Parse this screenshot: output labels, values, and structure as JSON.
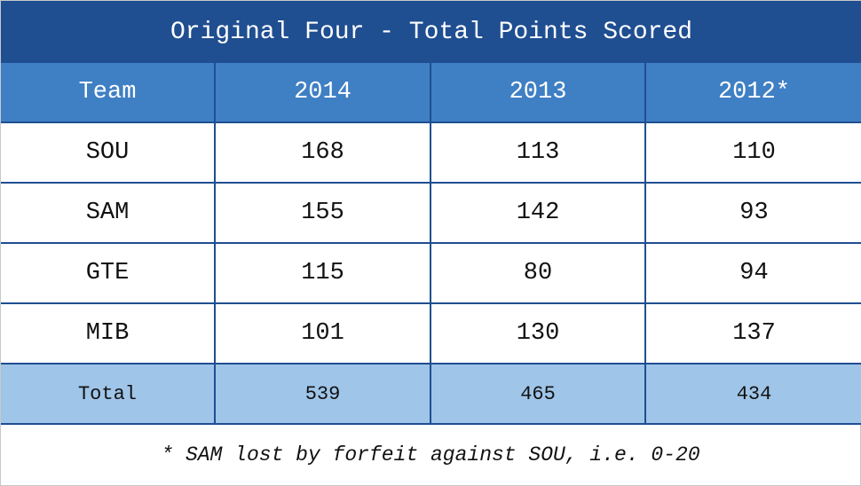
{
  "header": {
    "title": "Original Four - Total Points Scored"
  },
  "table": {
    "columns": [
      "Team",
      "2014",
      "2013",
      "2012*"
    ],
    "rows": [
      [
        "SOU",
        168,
        113,
        110
      ],
      [
        "SAM",
        155,
        142,
        93
      ],
      [
        "GTE",
        115,
        80,
        94
      ],
      [
        "MIB",
        101,
        130,
        137
      ]
    ],
    "total": [
      "Total",
      539,
      465,
      434
    ]
  },
  "footnote": "* SAM lost by forfeit against SOU, i.e. 0-20"
}
